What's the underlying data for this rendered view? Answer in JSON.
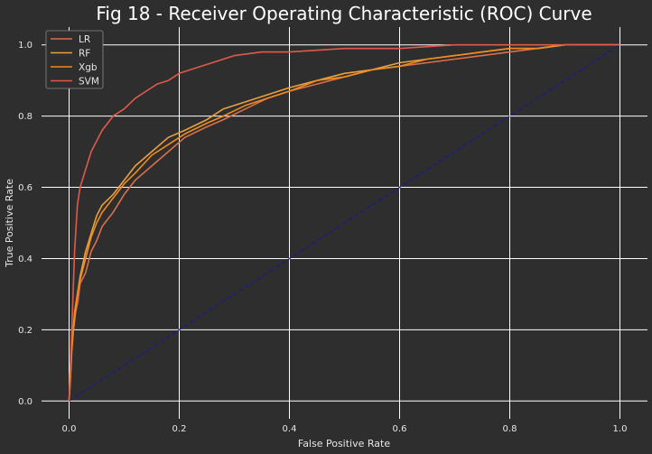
{
  "chart_data": {
    "type": "line",
    "title": "Fig 18 - Receiver Operating Characteristic (ROC) Curve",
    "xlabel": "False Positive Rate",
    "ylabel": "True Positive Rate",
    "xlim": [
      -0.05,
      1.05
    ],
    "ylim": [
      -0.05,
      1.05
    ],
    "xticks": [
      "0.0",
      "0.2",
      "0.4",
      "0.6",
      "0.8",
      "1.0"
    ],
    "yticks": [
      "0.0",
      "0.2",
      "0.4",
      "0.6",
      "0.8",
      "1.0"
    ],
    "grid": true,
    "legend_position": "upper-left",
    "colors": {
      "background": "#2e2e2e",
      "grid": "#ffffff",
      "reference": "#1a1a8c"
    },
    "reference_line": {
      "x": [
        0,
        1
      ],
      "y": [
        0,
        1
      ],
      "style": "dashed"
    },
    "series": [
      {
        "name": "LR",
        "color": "#d9704d",
        "x": [
          0,
          0.002,
          0.005,
          0.008,
          0.012,
          0.016,
          0.02,
          0.03,
          0.04,
          0.05,
          0.06,
          0.08,
          0.1,
          0.12,
          0.15,
          0.18,
          0.21,
          0.25,
          0.28,
          0.32,
          0.36,
          0.4,
          0.45,
          0.5,
          0.55,
          0.6,
          0.65,
          0.7,
          0.75,
          0.8,
          0.85,
          0.9,
          1.0
        ],
        "y": [
          0,
          0.08,
          0.18,
          0.2,
          0.25,
          0.28,
          0.33,
          0.36,
          0.42,
          0.45,
          0.49,
          0.53,
          0.58,
          0.62,
          0.66,
          0.7,
          0.74,
          0.77,
          0.79,
          0.82,
          0.85,
          0.87,
          0.89,
          0.91,
          0.93,
          0.94,
          0.95,
          0.96,
          0.97,
          0.98,
          0.99,
          1.0,
          1.0
        ]
      },
      {
        "name": "RF",
        "color": "#e8a040",
        "x": [
          0,
          0.002,
          0.005,
          0.01,
          0.015,
          0.02,
          0.03,
          0.04,
          0.05,
          0.06,
          0.08,
          0.1,
          0.12,
          0.15,
          0.18,
          0.21,
          0.25,
          0.28,
          0.32,
          0.36,
          0.4,
          0.45,
          0.5,
          0.55,
          0.6,
          0.65,
          0.7,
          0.75,
          0.8,
          0.85,
          0.9,
          1.0
        ],
        "y": [
          0,
          0.05,
          0.15,
          0.25,
          0.3,
          0.35,
          0.42,
          0.47,
          0.52,
          0.55,
          0.58,
          0.62,
          0.66,
          0.7,
          0.74,
          0.76,
          0.79,
          0.82,
          0.84,
          0.86,
          0.88,
          0.9,
          0.92,
          0.93,
          0.95,
          0.96,
          0.97,
          0.98,
          0.99,
          0.99,
          1.0,
          1.0
        ]
      },
      {
        "name": "Xgb",
        "color": "#f08c1e",
        "x": [
          0,
          0.002,
          0.005,
          0.01,
          0.015,
          0.02,
          0.03,
          0.04,
          0.05,
          0.06,
          0.08,
          0.1,
          0.12,
          0.15,
          0.18,
          0.21,
          0.25,
          0.28,
          0.32,
          0.36,
          0.4,
          0.45,
          0.5,
          0.55,
          0.6,
          0.65,
          0.7,
          0.75,
          0.8,
          0.85,
          0.9,
          1.0
        ],
        "y": [
          0,
          0.05,
          0.14,
          0.24,
          0.3,
          0.34,
          0.4,
          0.46,
          0.5,
          0.53,
          0.57,
          0.61,
          0.64,
          0.69,
          0.72,
          0.75,
          0.78,
          0.8,
          0.83,
          0.85,
          0.87,
          0.9,
          0.91,
          0.93,
          0.94,
          0.96,
          0.97,
          0.98,
          0.99,
          0.99,
          1.0,
          1.0
        ]
      },
      {
        "name": "SVM",
        "color": "#e05a4a",
        "x": [
          0,
          0.005,
          0.01,
          0.015,
          0.02,
          0.03,
          0.04,
          0.05,
          0.06,
          0.07,
          0.08,
          0.1,
          0.12,
          0.14,
          0.16,
          0.18,
          0.2,
          0.22,
          0.24,
          0.26,
          0.28,
          0.3,
          0.35,
          0.4,
          0.5,
          0.6,
          0.7,
          0.8,
          0.9,
          1.0
        ],
        "y": [
          0,
          0.2,
          0.42,
          0.55,
          0.6,
          0.65,
          0.7,
          0.73,
          0.76,
          0.78,
          0.8,
          0.82,
          0.85,
          0.87,
          0.89,
          0.9,
          0.92,
          0.93,
          0.94,
          0.95,
          0.96,
          0.97,
          0.98,
          0.98,
          0.99,
          0.99,
          1.0,
          1.0,
          1.0,
          1.0
        ]
      }
    ]
  }
}
